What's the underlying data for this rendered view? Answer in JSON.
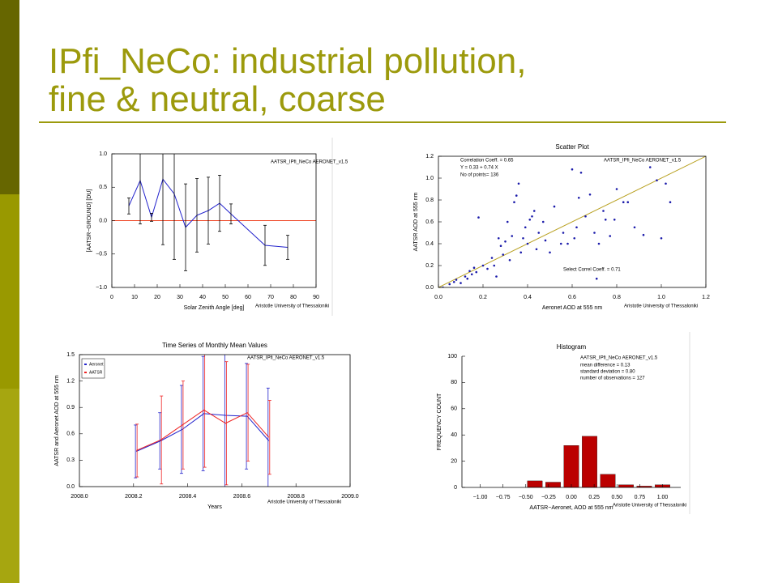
{
  "slide": {
    "title_lines": [
      "IPfi_NeCo: industrial pollution,",
      "fine & neutral, coarse"
    ]
  },
  "chart_data": [
    {
      "type": "errorline",
      "annotations": [
        "AATSR_IPfi_NeCo AERONET_v1.5",
        "Aristotle University of Thessaloniki"
      ],
      "x_label": "Solar Zenith Angle [deg]",
      "y_label": "[AATSR−GROUND] [DU]",
      "x": [
        7.5,
        12.5,
        17.5,
        22.5,
        27.5,
        32.5,
        37.5,
        42.5,
        47.5,
        52.5,
        67.5,
        77.5
      ],
      "series": [
        {
          "color": "#2222cc",
          "values": [
            0.22,
            0.6,
            0.05,
            0.62,
            0.4,
            -0.1,
            0.08,
            0.15,
            0.26,
            0.1,
            -0.37,
            -0.4
          ],
          "errors": [
            0.12,
            0.65,
            0.06,
            0.98,
            0.98,
            0.65,
            0.55,
            0.5,
            0.42,
            0.15,
            0.3,
            0.18
          ],
          "error_color": "#000000"
        }
      ],
      "hline": 0,
      "hline_color": "#ee4422",
      "xlim": [
        0,
        90
      ],
      "xticks": [
        0,
        10,
        20,
        30,
        40,
        50,
        60,
        70,
        80,
        90
      ],
      "ylim": [
        -1,
        1
      ],
      "yticks": [
        {
          "value": -1,
          "label": "−1.0"
        },
        {
          "value": -0.5,
          "label": "−0.5"
        },
        {
          "value": 0,
          "label": "0.0"
        },
        {
          "value": 0.5,
          "label": "0.5"
        },
        {
          "value": 1,
          "label": "1.0"
        }
      ]
    },
    {
      "type": "scatter",
      "title": "Scatter Plot",
      "annotations": [
        "AATSR_IPfi_NeCo AERONET_v1.5",
        "Correlation Coeff. = 0.65",
        "Y = 0.33 + 0.74 X",
        "No of points= 136",
        "Select Correl Coeff. = 0.71",
        "Aristotle University of Thessaloniki"
      ],
      "x_label": "Aeronet AOD at 555 nm",
      "y_label": "AATSR AOD at 555 nm",
      "color": "#1a1aaa",
      "fit_color": "#b8a020",
      "x": [
        0.02,
        0.05,
        0.07,
        0.08,
        0.1,
        0.12,
        0.13,
        0.14,
        0.15,
        0.16,
        0.17,
        0.18,
        0.2,
        0.22,
        0.24,
        0.25,
        0.26,
        0.27,
        0.28,
        0.29,
        0.3,
        0.31,
        0.32,
        0.33,
        0.34,
        0.35,
        0.36,
        0.37,
        0.38,
        0.39,
        0.4,
        0.41,
        0.42,
        0.43,
        0.44,
        0.45,
        0.47,
        0.48,
        0.5,
        0.52,
        0.55,
        0.56,
        0.58,
        0.6,
        0.61,
        0.62,
        0.63,
        0.64,
        0.66,
        0.68,
        0.7,
        0.71,
        0.72,
        0.74,
        0.75,
        0.77,
        0.79,
        0.8,
        0.83,
        0.85,
        0.88,
        0.92,
        0.95,
        0.98,
        1.0,
        1.02,
        1.04
      ],
      "values": [
        0.0,
        0.03,
        0.05,
        0.07,
        0.04,
        0.1,
        0.08,
        0.15,
        0.12,
        0.18,
        0.14,
        0.64,
        0.2,
        0.17,
        0.27,
        0.2,
        0.1,
        0.45,
        0.38,
        0.3,
        0.42,
        0.6,
        0.25,
        0.47,
        0.78,
        0.84,
        0.95,
        0.32,
        0.45,
        0.55,
        0.4,
        0.62,
        0.65,
        0.7,
        0.35,
        0.5,
        0.6,
        0.43,
        0.32,
        0.74,
        0.4,
        0.5,
        0.4,
        1.08,
        0.45,
        0.55,
        0.82,
        1.05,
        0.65,
        0.85,
        0.5,
        0.08,
        0.4,
        0.7,
        0.62,
        0.47,
        0.62,
        0.9,
        0.78,
        0.78,
        0.55,
        0.48,
        1.1,
        0.98,
        0.45,
        0.95,
        0.78
      ],
      "xlim": [
        0,
        1.2
      ],
      "xticks": [
        {
          "value": 0,
          "label": "0.0"
        },
        {
          "value": 0.2,
          "label": "0.2"
        },
        {
          "value": 0.4,
          "label": "0.4"
        },
        {
          "value": 0.6,
          "label": "0.6"
        },
        {
          "value": 0.8,
          "label": "0.8"
        },
        {
          "value": 1,
          "label": "1.0"
        },
        {
          "value": 1.2,
          "label": "1.2"
        }
      ],
      "ylim": [
        0,
        1.2
      ],
      "yticks": [
        {
          "value": 0,
          "label": "0.0"
        },
        {
          "value": 0.2,
          "label": "0.2"
        },
        {
          "value": 0.4,
          "label": "0.4"
        },
        {
          "value": 0.6,
          "label": "0.6"
        },
        {
          "value": 0.8,
          "label": "0.8"
        },
        {
          "value": 1,
          "label": "1.0"
        },
        {
          "value": 1.2,
          "label": "1.2"
        }
      ]
    },
    {
      "type": "errorline",
      "title": "Time Series of Monthly Mean Values",
      "annotations": [
        "AATSR_IPfi_NeCo AERONET_v1.5",
        "Aristotle University of Thessaloniki"
      ],
      "x_label": "Years",
      "y_label": "AATSR and Aeronet AOD at 555 nm",
      "legend": "top-left",
      "x": [
        2008.21,
        2008.3,
        2008.38,
        2008.46,
        2008.54,
        2008.62,
        2008.7
      ],
      "series": [
        {
          "name": "Aeronet",
          "color": "#2222cc",
          "values": [
            0.4,
            0.52,
            0.65,
            0.83,
            0.81,
            0.8,
            0.52
          ],
          "errors": [
            0.3,
            0.32,
            0.5,
            0.65,
            0.9,
            0.6,
            0.6
          ]
        },
        {
          "name": "AATSR",
          "color": "#ee2222",
          "values": [
            0.41,
            0.53,
            0.7,
            0.87,
            0.72,
            0.84,
            0.56
          ],
          "errors": [
            0.3,
            0.5,
            0.5,
            0.65,
            0.7,
            0.55,
            0.42
          ]
        }
      ],
      "xlim": [
        2008,
        2009
      ],
      "xticks": [
        {
          "value": 2008,
          "label": "2008.0"
        },
        2008.2,
        2008.4,
        2008.6,
        2008.8,
        {
          "value": 2009,
          "label": "2009.0"
        }
      ],
      "ylim": [
        0,
        1.5
      ],
      "yticks": [
        {
          "value": 0,
          "label": "0.0"
        },
        0.3,
        0.6,
        0.9,
        1.2,
        1.5
      ]
    },
    {
      "type": "histogram",
      "title": "Histogram",
      "annotations": [
        "AATSR_IPfi_NeCo AERONET_v1.5",
        "mean difference = 0.13",
        "standard deviation = 0.80",
        "number of observations = 127",
        "Aristotle University of Thessaloniki"
      ],
      "x_label": "AATSR−Aeronet, AOD at 555 nm",
      "y_label": "FREQUENCY COUNT",
      "color": "#bb0000",
      "bins": [
        -0.5,
        -0.3,
        -0.1,
        0.1,
        0.3,
        0.5,
        0.7,
        0.9,
        1.1
      ],
      "values": [
        5,
        4,
        32,
        39,
        10,
        2,
        1,
        2
      ],
      "xlim": [
        -1.2,
        1.2
      ],
      "xticks": [
        {
          "value": -1,
          "label": "−1.00"
        },
        {
          "value": -0.75,
          "label": "−0.75"
        },
        {
          "value": -0.5,
          "label": "−0.50"
        },
        {
          "value": -0.25,
          "label": "−0.25"
        },
        {
          "value": 0,
          "label": "0.00"
        },
        {
          "value": 0.25,
          "label": "0.25"
        },
        {
          "value": 0.5,
          "label": "0.50"
        },
        {
          "value": 0.75,
          "label": "0.75"
        },
        {
          "value": 1,
          "label": "1.00"
        }
      ],
      "ylim": [
        0,
        100
      ],
      "yticks": [
        0,
        20,
        40,
        60,
        80,
        100
      ]
    }
  ]
}
